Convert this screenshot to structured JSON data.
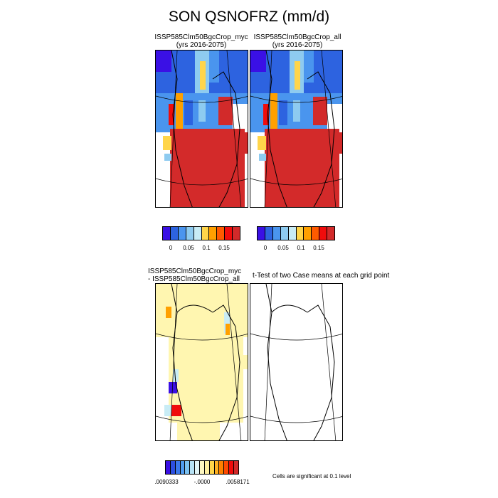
{
  "figure": {
    "title": "SON QSNOFRZ (mm/d)"
  },
  "panels": {
    "top_left": {
      "title_line1": "ISSP585Clm50BgcCrop_myc",
      "title_line2": "(yrs 2016-2075)"
    },
    "top_right": {
      "title_line1": "ISSP585Clm50BgcCrop_all",
      "title_line2": "(yrs 2016-2075)"
    },
    "bottom_left": {
      "title_line1": "ISSP585Clm50BgcCrop_myc",
      "title_line2": "- ISSP585Clm50BgcCrop_all"
    },
    "bottom_right": {
      "title_line1": "t-Test of two Case means at each grid point"
    }
  },
  "colorbar_top": {
    "colors": [
      "#3a10e5",
      "#2d63e0",
      "#4a95ee",
      "#8ecbf0",
      "#c8ecf5",
      "#ffd54a",
      "#ffa000",
      "#ff5a00",
      "#f00c0c",
      "#d22a2a"
    ],
    "tick_labels": [
      "0",
      "0.05",
      "0.1",
      "0.15"
    ]
  },
  "colorbar_bottom": {
    "colors": [
      "#3a10e5",
      "#2d4fe0",
      "#3b78ec",
      "#4f9bf0",
      "#7cc2f2",
      "#b6e2f5",
      "#e0f4f7",
      "#fff8c2",
      "#fff0a0",
      "#ffd54a",
      "#ffb020",
      "#ff8000",
      "#ff4a00",
      "#f00c0c",
      "#d22a2a"
    ],
    "tick_labels": [
      ".0090333",
      "-.0000",
      ".0058171"
    ]
  },
  "significance_note": "Cells are significant at 0.1 level",
  "map_colors": {
    "land_high": "#d32a2a",
    "diff_background": "#fff6b0"
  }
}
